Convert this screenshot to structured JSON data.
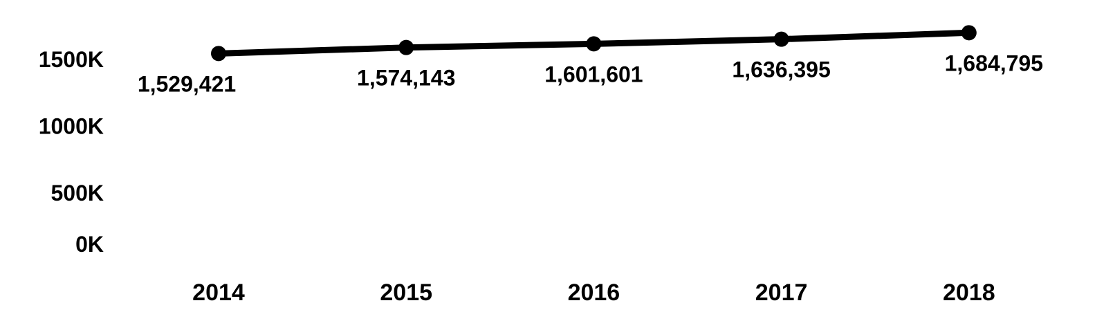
{
  "chart_data": {
    "type": "line",
    "title": "",
    "xlabel": "",
    "ylabel": "",
    "categories": [
      "2014",
      "2015",
      "2016",
      "2017",
      "2018"
    ],
    "values": [
      1529421,
      1574143,
      1601601,
      1636395,
      1684795
    ],
    "data_labels": [
      "1,529,421",
      "1,574,143",
      "1,601,601",
      "1,636,395",
      "1,684,795"
    ],
    "y_ticks": [
      {
        "value": 0,
        "label": "0K"
      },
      {
        "value": 500000,
        "label": "500K"
      },
      {
        "value": 1000000,
        "label": "1000K"
      },
      {
        "value": 1500000,
        "label": "1500K"
      }
    ],
    "ylim": [
      0,
      1700000
    ],
    "grid": false,
    "legend": "none",
    "line_color": "#000000"
  }
}
